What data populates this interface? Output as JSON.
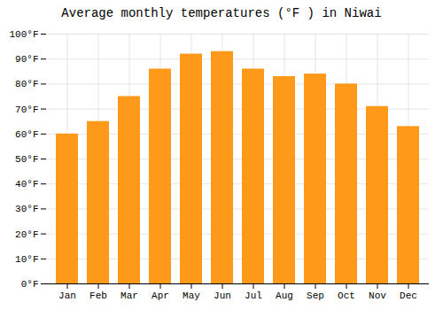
{
  "chart_data": {
    "type": "bar",
    "title": "Average monthly temperatures (°F ) in Niwai",
    "categories": [
      "Jan",
      "Feb",
      "Mar",
      "Apr",
      "May",
      "Jun",
      "Jul",
      "Aug",
      "Sep",
      "Oct",
      "Nov",
      "Dec"
    ],
    "values": [
      60,
      65,
      75,
      86,
      92,
      93,
      86,
      83,
      84,
      80,
      71,
      63
    ],
    "color": "#ff991a",
    "ylim": [
      0,
      100
    ],
    "yticks": [
      {
        "value": 0,
        "label": "0°F"
      },
      {
        "value": 10,
        "label": "10°F"
      },
      {
        "value": 20,
        "label": "20°F"
      },
      {
        "value": 30,
        "label": "30°F"
      },
      {
        "value": 40,
        "label": "40°F"
      },
      {
        "value": 50,
        "label": "50°F"
      },
      {
        "value": 60,
        "label": "60°F"
      },
      {
        "value": 70,
        "label": "70°F"
      },
      {
        "value": 80,
        "label": "80°F"
      },
      {
        "value": 90,
        "label": "90°F"
      },
      {
        "value": 100,
        "label": "100°F"
      }
    ],
    "grid": true
  }
}
